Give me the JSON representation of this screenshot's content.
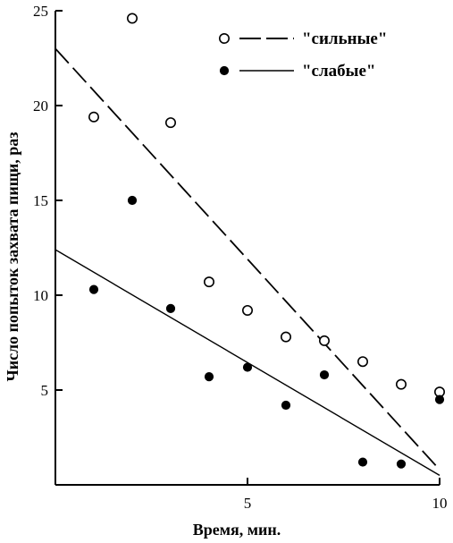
{
  "chart_data": {
    "type": "scatter",
    "title": "",
    "xlabel": "Время,  мин.",
    "ylabel": "Число попыток захвата пищи,  раз",
    "xlim": [
      0,
      10
    ],
    "ylim": [
      0,
      25
    ],
    "x_ticks": [
      5,
      10
    ],
    "y_ticks": [
      5,
      10,
      15,
      20,
      25
    ],
    "grid": false,
    "legend_position": "top-right",
    "series": [
      {
        "name": "\"сильные\"",
        "marker": "open-circle",
        "line_style": "dashed",
        "points": [
          {
            "x": 1,
            "y": 19.4
          },
          {
            "x": 2,
            "y": 24.6
          },
          {
            "x": 3,
            "y": 19.1
          },
          {
            "x": 4,
            "y": 10.7
          },
          {
            "x": 5,
            "y": 9.2
          },
          {
            "x": 6,
            "y": 7.8
          },
          {
            "x": 7,
            "y": 7.6
          },
          {
            "x": 8,
            "y": 6.5
          },
          {
            "x": 9,
            "y": 5.3
          },
          {
            "x": 10,
            "y": 4.9
          }
        ],
        "trend": {
          "x0": 0,
          "y0": 23.0,
          "x1": 10,
          "y1": 0.8
        }
      },
      {
        "name": "\"слабые\"",
        "marker": "filled-circle",
        "line_style": "solid",
        "points": [
          {
            "x": 1,
            "y": 10.3
          },
          {
            "x": 2,
            "y": 15.0
          },
          {
            "x": 3,
            "y": 9.3
          },
          {
            "x": 4,
            "y": 5.7
          },
          {
            "x": 5,
            "y": 6.2
          },
          {
            "x": 6,
            "y": 4.2
          },
          {
            "x": 7,
            "y": 5.8
          },
          {
            "x": 8,
            "y": 1.2
          },
          {
            "x": 9,
            "y": 1.1
          },
          {
            "x": 10,
            "y": 4.5
          }
        ],
        "trend": {
          "x0": 0,
          "y0": 12.4,
          "x1": 10,
          "y1": 0.5
        }
      }
    ]
  }
}
